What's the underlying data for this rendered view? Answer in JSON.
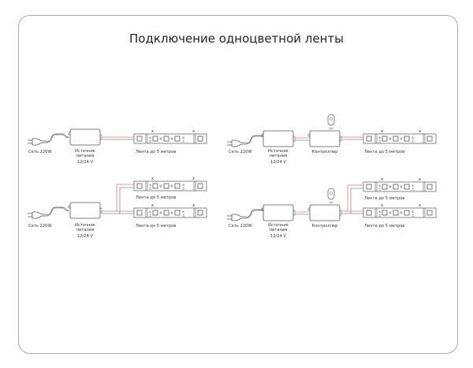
{
  "title": "Подключение одноцветной ленты",
  "labels": {
    "mains": "Сеть 220W",
    "psu_line1": "Источник",
    "psu_line2": "питания",
    "psu_voltage": "12/24 V",
    "controller": "Контроллер",
    "strip": "Лента до 5 метров",
    "cut_mark": "x"
  },
  "colors": {
    "wire_positive": "#e07a86",
    "wire_negative": "#8a8a8a",
    "outline": "#555555"
  }
}
